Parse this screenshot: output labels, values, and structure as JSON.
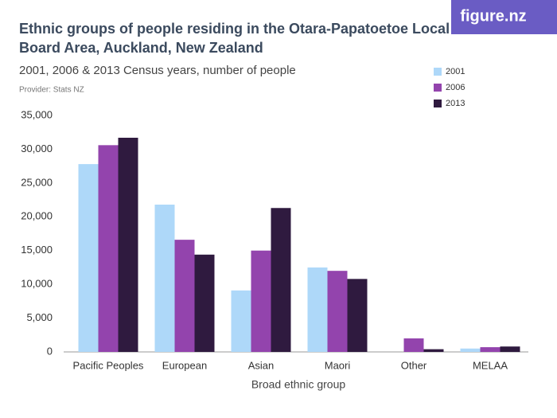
{
  "logo": "figure.nz",
  "chart_data": {
    "type": "bar",
    "title": [
      "Ethnic groups of people residing in the Otara-Papatoetoe Local",
      "Board Area, Auckland, New Zealand"
    ],
    "subtitle": "2001, 2006 & 2013 Census years, number of people",
    "provider": "Provider: Stats NZ",
    "x_label": "Broad ethnic group",
    "categories": [
      "Pacific Peoples",
      "European",
      "Asian",
      "Maori",
      "Other",
      "MELAA"
    ],
    "series": [
      {
        "name": "2001",
        "color": "#aed8f9",
        "values": [
          27800,
          21800,
          9100,
          12500,
          null,
          500
        ]
      },
      {
        "name": "2006",
        "color": "#9344ad",
        "values": [
          30600,
          16600,
          15000,
          12000,
          2000,
          700
        ]
      },
      {
        "name": "2013",
        "color": "#2f1a3f",
        "values": [
          31700,
          14400,
          21300,
          10800,
          400,
          800
        ]
      }
    ],
    "ylim": [
      0,
      35000
    ],
    "yticks": [
      0,
      {
        "value": 5000,
        "label": "5,000"
      },
      {
        "value": 10000,
        "label": "10,000"
      },
      {
        "value": 15000,
        "label": "15,000"
      },
      {
        "value": 20000,
        "label": "20,000"
      },
      {
        "value": 25000,
        "label": "25,000"
      },
      {
        "value": 30000,
        "label": "30,000"
      },
      {
        "value": 35000,
        "label": "35,000"
      }
    ],
    "grid": false,
    "legend_position": "top-right"
  }
}
